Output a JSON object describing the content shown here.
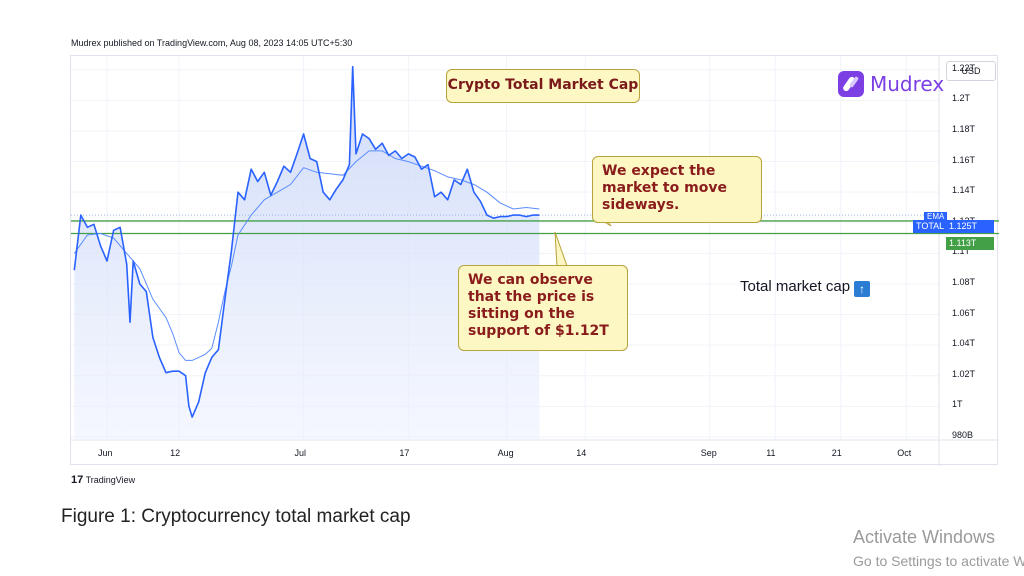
{
  "published_text": "Mudrex published on TradingView.com, Aug 08, 2023 14:05 UTC+5:30",
  "title_box": "Crypto Total Market Cap",
  "logo_text": "Mudrex",
  "currency_button": "USD",
  "callout_top": "We expect the market to move sideways.",
  "callout_bottom": "We can observe that the price is sitting on the support of $1.12T",
  "annotation_text": "Total market cap",
  "annotation_icon": "up-arrow-square-icon",
  "price_tags": {
    "series_name": "TOTAL",
    "last_price": "1.125T",
    "support_price": "1.113T",
    "small_tag": "EMA"
  },
  "brand_footer": "TradingView",
  "figure_caption": "Figure 1: Cryptocurrency total market cap",
  "watermark_line1": "Activate Windows",
  "watermark_line2": "Go to Settings to activate Windows.",
  "colors": {
    "line": "#2962ff",
    "ema": "#5b8cff",
    "support": "#43a047",
    "fill": "#dbe4fb",
    "callout": "#fdf7c3",
    "callout_text": "#8a1c1c"
  },
  "chart_data": {
    "type": "area",
    "y_ticks": [
      "1.22T",
      "1.2T",
      "1.18T",
      "1.16T",
      "1.14T",
      "1.12T",
      "1.1T",
      "1.08T",
      "1.06T",
      "1.04T",
      "1.02T",
      "1T",
      "980B"
    ],
    "y_tick_values": [
      1.22,
      1.2,
      1.18,
      1.16,
      1.14,
      1.12,
      1.1,
      1.08,
      1.06,
      1.04,
      1.02,
      1.0,
      0.98
    ],
    "ylim": [
      0.978,
      1.229
    ],
    "x_ticks": [
      "Jun",
      "12",
      "Jul",
      "17",
      "Aug",
      "14",
      "Sep",
      "11",
      "21",
      "Oct"
    ],
    "x_tick_days": [
      0,
      11,
      30,
      46,
      61,
      73,
      92,
      102,
      112,
      122
    ],
    "xlim": [
      -5.5,
      127
    ],
    "series": [
      {
        "name": "TOTAL",
        "x": [
          -5,
          -4,
          -3,
          -2,
          -1,
          0,
          1,
          2,
          3,
          3.5,
          4,
          5,
          6,
          7,
          8,
          9,
          10,
          11,
          12,
          12.5,
          13,
          14,
          15,
          16,
          17,
          18,
          19,
          20,
          21,
          22,
          23,
          24,
          25,
          26,
          27,
          28,
          29,
          30,
          31,
          32,
          33,
          34,
          35,
          36,
          37,
          37.5,
          38,
          39,
          40,
          41,
          42,
          43,
          44,
          45,
          46,
          47,
          48,
          49,
          50,
          51,
          52,
          53,
          54,
          55,
          56,
          57,
          58,
          59,
          60,
          61,
          62,
          63,
          64,
          65,
          66
        ],
        "values": [
          1.089,
          1.125,
          1.117,
          1.119,
          1.105,
          1.095,
          1.115,
          1.117,
          1.093,
          1.055,
          1.095,
          1.08,
          1.075,
          1.045,
          1.032,
          1.022,
          1.023,
          1.023,
          1.02,
          1.0,
          0.993,
          1.003,
          1.022,
          1.032,
          1.037,
          1.07,
          1.102,
          1.14,
          1.135,
          1.155,
          1.147,
          1.153,
          1.138,
          1.147,
          1.157,
          1.153,
          1.165,
          1.178,
          1.162,
          1.16,
          1.14,
          1.135,
          1.142,
          1.148,
          1.158,
          1.222,
          1.165,
          1.178,
          1.175,
          1.168,
          1.172,
          1.164,
          1.167,
          1.162,
          1.165,
          1.163,
          1.155,
          1.158,
          1.137,
          1.14,
          1.135,
          1.148,
          1.145,
          1.155,
          1.14,
          1.134,
          1.125,
          1.123,
          1.124,
          1.124,
          1.125,
          1.125,
          1.124,
          1.125,
          1.125
        ]
      },
      {
        "name": "EMA",
        "x": [
          -5,
          -3,
          -1,
          1,
          3,
          5,
          7,
          9,
          10,
          11,
          12,
          13,
          14,
          15,
          16,
          17,
          18,
          19,
          20,
          22,
          24,
          26,
          28,
          30,
          32,
          34,
          36,
          38,
          40,
          42,
          44,
          46,
          48,
          50,
          52,
          54,
          56,
          58,
          60,
          62,
          64,
          66
        ],
        "values": [
          1.1,
          1.112,
          1.113,
          1.11,
          1.1,
          1.09,
          1.07,
          1.058,
          1.048,
          1.035,
          1.03,
          1.03,
          1.032,
          1.034,
          1.038,
          1.055,
          1.075,
          1.092,
          1.112,
          1.125,
          1.135,
          1.14,
          1.145,
          1.156,
          1.153,
          1.152,
          1.151,
          1.16,
          1.167,
          1.167,
          1.162,
          1.16,
          1.157,
          1.154,
          1.15,
          1.148,
          1.145,
          1.14,
          1.133,
          1.129,
          1.13,
          1.129
        ]
      }
    ],
    "support_lines": [
      1.113,
      1.1212
    ]
  }
}
